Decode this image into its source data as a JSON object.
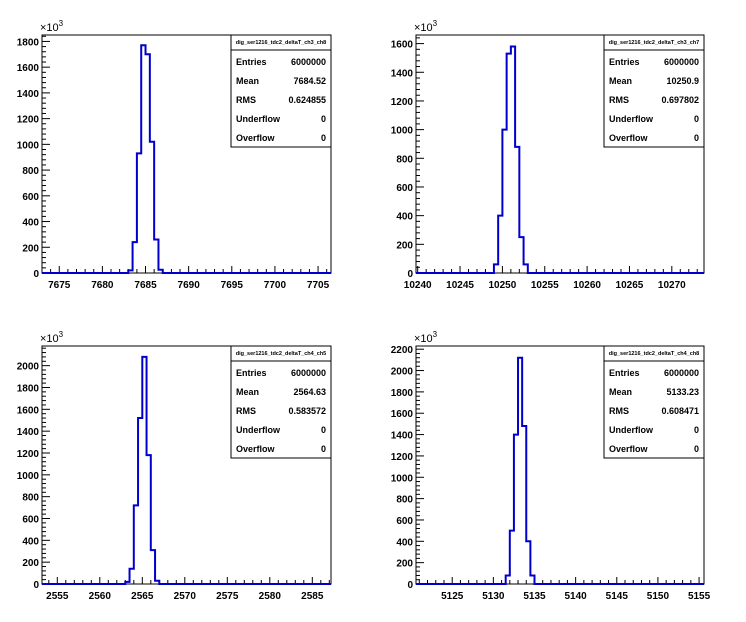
{
  "chart_data": [
    {
      "type": "bar",
      "title": "",
      "xlabel": "",
      "ylabel": "",
      "y_exponent": "3",
      "x_ticks": [
        7675,
        7680,
        7685,
        7690,
        7695,
        7700,
        7705
      ],
      "y_ticks": [
        0,
        200,
        400,
        600,
        800,
        1000,
        1200,
        1400,
        1600,
        1800
      ],
      "xlim": [
        7673,
        7706.5
      ],
      "ylim": [
        0,
        1850
      ],
      "bin_width": 0.5,
      "bins": [
        {
          "x": 7683.0,
          "value": 20
        },
        {
          "x": 7683.5,
          "value": 240
        },
        {
          "x": 7684.0,
          "value": 930
        },
        {
          "x": 7684.5,
          "value": 1770
        },
        {
          "x": 7685.0,
          "value": 1700
        },
        {
          "x": 7685.5,
          "value": 1020
        },
        {
          "x": 7686.0,
          "value": 260
        },
        {
          "x": 7686.5,
          "value": 25
        }
      ],
      "color": "#0000cc",
      "stats": {
        "name": "dig_ser1216_tdc2_deltaT_ch3_ch8",
        "rows": [
          {
            "label": "Entries",
            "value": "6000000"
          },
          {
            "label": "Mean",
            "value": "7684.52"
          },
          {
            "label": "RMS",
            "value": "0.624855"
          },
          {
            "label": "Underflow",
            "value": "0"
          },
          {
            "label": "Overflow",
            "value": "0"
          }
        ]
      }
    },
    {
      "type": "bar",
      "title": "",
      "xlabel": "",
      "ylabel": "",
      "y_exponent": "3",
      "x_ticks": [
        10240,
        10245,
        10250,
        10255,
        10260,
        10265,
        10270
      ],
      "y_ticks": [
        0,
        200,
        400,
        600,
        800,
        1000,
        1200,
        1400,
        1600
      ],
      "xlim": [
        10239.8,
        10273.8
      ],
      "ylim": [
        0,
        1660
      ],
      "bin_width": 0.5,
      "bins": [
        {
          "x": 10249.0,
          "value": 60
        },
        {
          "x": 10249.5,
          "value": 400
        },
        {
          "x": 10250.0,
          "value": 1000
        },
        {
          "x": 10250.5,
          "value": 1530
        },
        {
          "x": 10251.0,
          "value": 1580
        },
        {
          "x": 10251.5,
          "value": 880
        },
        {
          "x": 10252.0,
          "value": 250
        },
        {
          "x": 10252.5,
          "value": 60
        }
      ],
      "color": "#0000cc",
      "stats": {
        "name": "dig_ser1216_tdc2_deltaT_ch3_ch7",
        "rows": [
          {
            "label": "Entries",
            "value": "6000000"
          },
          {
            "label": "Mean",
            "value": "10250.9"
          },
          {
            "label": "RMS",
            "value": "0.697802"
          },
          {
            "label": "Underflow",
            "value": "0"
          },
          {
            "label": "Overflow",
            "value": "0"
          }
        ]
      }
    },
    {
      "type": "bar",
      "title": "",
      "xlabel": "",
      "ylabel": "",
      "y_exponent": "3",
      "x_ticks": [
        2555,
        2560,
        2565,
        2570,
        2575,
        2580,
        2585
      ],
      "y_ticks": [
        0,
        200,
        400,
        600,
        800,
        1000,
        1200,
        1400,
        1600,
        1800,
        2000
      ],
      "xlim": [
        2553.2,
        2587.2
      ],
      "ylim": [
        0,
        2180
      ],
      "bin_width": 0.5,
      "bins": [
        {
          "x": 2563.0,
          "value": 20
        },
        {
          "x": 2563.5,
          "value": 140
        },
        {
          "x": 2564.0,
          "value": 720
        },
        {
          "x": 2564.5,
          "value": 1520
        },
        {
          "x": 2565.0,
          "value": 2080
        },
        {
          "x": 2565.5,
          "value": 1180
        },
        {
          "x": 2566.0,
          "value": 310
        },
        {
          "x": 2566.5,
          "value": 30
        }
      ],
      "color": "#0000cc",
      "stats": {
        "name": "dig_ser1216_tdc2_deltaT_ch4_ch5",
        "rows": [
          {
            "label": "Entries",
            "value": "6000000"
          },
          {
            "label": "Mean",
            "value": "2564.63"
          },
          {
            "label": "RMS",
            "value": "0.583572"
          },
          {
            "label": "Underflow",
            "value": "0"
          },
          {
            "label": "Overflow",
            "value": "0"
          }
        ]
      }
    },
    {
      "type": "bar",
      "title": "",
      "xlabel": "",
      "ylabel": "",
      "y_exponent": "3",
      "x_ticks": [
        5125,
        5130,
        5135,
        5140,
        5145,
        5150,
        5155
      ],
      "y_ticks": [
        0,
        200,
        400,
        600,
        800,
        1000,
        1200,
        1400,
        1600,
        1800,
        2000,
        2200
      ],
      "xlim": [
        5120.6,
        5155.6
      ],
      "ylim": [
        0,
        2230
      ],
      "bin_width": 0.5,
      "bins": [
        {
          "x": 5131.5,
          "value": 80
        },
        {
          "x": 5132.0,
          "value": 500
        },
        {
          "x": 5132.5,
          "value": 1400
        },
        {
          "x": 5133.0,
          "value": 2120
        },
        {
          "x": 5133.5,
          "value": 1480
        },
        {
          "x": 5134.0,
          "value": 400
        },
        {
          "x": 5134.5,
          "value": 80
        }
      ],
      "color": "#0000cc",
      "stats": {
        "name": "dig_ser1216_tdc2_deltaT_ch4_ch8",
        "rows": [
          {
            "label": "Entries",
            "value": "6000000"
          },
          {
            "label": "Mean",
            "value": "5133.23"
          },
          {
            "label": "RMS",
            "value": "0.608471"
          },
          {
            "label": "Underflow",
            "value": "0"
          },
          {
            "label": "Overflow",
            "value": "0"
          }
        ]
      }
    }
  ]
}
